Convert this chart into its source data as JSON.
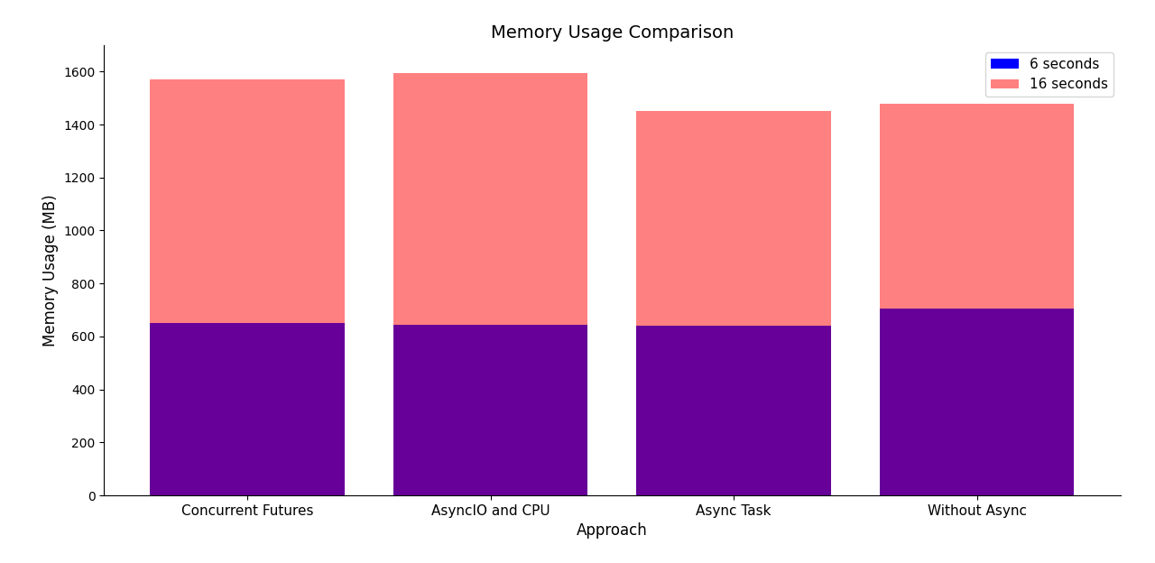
{
  "categories": [
    "Concurrent Futures",
    "AsyncIO and CPU",
    "Async Task",
    "Without Async"
  ],
  "values_6s": [
    650,
    645,
    640,
    705
  ],
  "values_16s_additional": [
    922,
    950,
    810,
    775
  ],
  "color_6s": "#0000ff",
  "color_16s": "#ff8080",
  "bar_6s_actual_color": "#660099",
  "title": "Memory Usage Comparison",
  "xlabel": "Approach",
  "ylabel": "Memory Usage (MB)",
  "legend_6s": "6 seconds",
  "legend_16s": "16 seconds",
  "ylim": [
    0,
    1700
  ],
  "yticks": [
    0,
    200,
    400,
    600,
    800,
    1000,
    1200,
    1400,
    1600
  ],
  "figsize": [
    12.8,
    6.24
  ],
  "dpi": 100
}
